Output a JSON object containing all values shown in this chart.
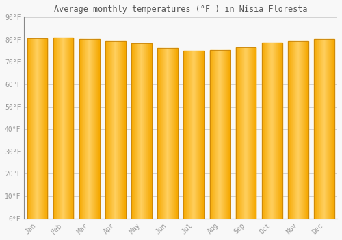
{
  "title": "Average monthly temperatures (°F ) in Nísia Floresta",
  "months": [
    "Jan",
    "Feb",
    "Mar",
    "Apr",
    "May",
    "Jun",
    "Jul",
    "Aug",
    "Sep",
    "Oct",
    "Nov",
    "Dec"
  ],
  "values": [
    80.6,
    81.0,
    80.2,
    79.3,
    78.3,
    76.3,
    75.2,
    75.4,
    76.6,
    78.6,
    79.5,
    80.2
  ],
  "bar_color_center": "#FFD060",
  "bar_color_edge": "#F5A800",
  "bar_border_color": "#C8840A",
  "background_color": "#F8F8F8",
  "grid_color": "#CCCCCC",
  "tick_label_color": "#999999",
  "title_color": "#555555",
  "ylim": [
    0,
    90
  ],
  "yticks": [
    0,
    10,
    20,
    30,
    40,
    50,
    60,
    70,
    80,
    90
  ],
  "ytick_labels": [
    "0°F",
    "10°F",
    "20°F",
    "30°F",
    "40°F",
    "50°F",
    "60°F",
    "70°F",
    "80°F",
    "90°F"
  ],
  "bar_width": 0.78,
  "figsize": [
    5.0,
    3.5
  ],
  "dpi": 100
}
